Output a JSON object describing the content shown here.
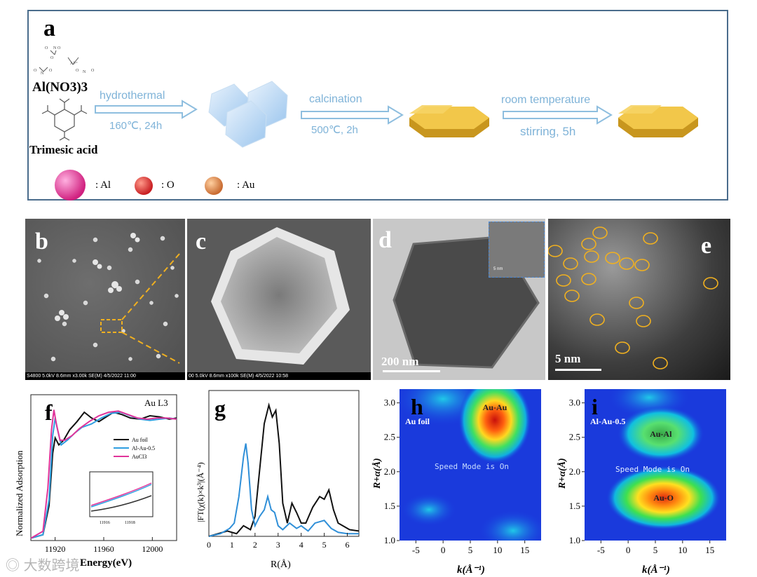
{
  "panel_a": {
    "letter": "a",
    "reagent1": "Al(NO3)3",
    "reagent2": "Trimesic acid",
    "step1_label": "hydrothermal",
    "step1_cond": "160℃,  24h",
    "step2_label": "calcination",
    "step2_cond": "500℃,  2h",
    "step3_label": "room temperature",
    "step3_cond": "stirring, 5h",
    "legend": [
      {
        "symbol": ": Al",
        "color": "#e0308f"
      },
      {
        "symbol": ": O",
        "color": "#d8262a"
      },
      {
        "symbol": ": Au",
        "color": "#d98040"
      }
    ]
  },
  "panel_b": {
    "letter": "b",
    "sem_info": "S4800 5.0kV 8.6mm x3.00k SE(M) 4/5/2022 11:00"
  },
  "panel_c": {
    "letter": "c",
    "sem_info": "00 5.0kV 8.6mm x100k SE(M) 4/5/2022 10:58"
  },
  "panel_d": {
    "letter": "d",
    "scale": "200 nm",
    "inset_scale": "5 nm"
  },
  "panel_e": {
    "letter": "e",
    "scale": "5 nm"
  },
  "chart_data": [
    {
      "id": "f",
      "type": "line",
      "title": "Au L3",
      "xlabel": "Energy(eV)",
      "ylabel": "Normalized Adsorption",
      "xlim": [
        11900,
        12020
      ],
      "ylim": [
        0,
        1.25
      ],
      "xticks": [
        11920,
        11960,
        12000
      ],
      "series": [
        {
          "name": "Au foil",
          "color": "#111111",
          "x": [
            11900,
            11910,
            11915,
            11918,
            11920,
            11923,
            11927,
            11932,
            11938,
            11944,
            11950,
            11956,
            11962,
            11968,
            11975,
            11982,
            11990,
            11998,
            12006,
            12014,
            12020
          ],
          "y": [
            0.02,
            0.05,
            0.3,
            0.75,
            0.88,
            0.82,
            0.86,
            0.95,
            1.02,
            1.1,
            1.05,
            1.02,
            1.06,
            1.1,
            1.08,
            1.05,
            1.04,
            1.07,
            1.06,
            1.04,
            1.05
          ]
        },
        {
          "name": "Al-Au-0.5",
          "color": "#2f9ee0",
          "x": [
            11900,
            11910,
            11915,
            11918,
            11920,
            11922,
            11925,
            11930,
            11936,
            11942,
            11950,
            11958,
            11966,
            11974,
            11982,
            11990,
            11998,
            12006,
            12014,
            12020
          ],
          "y": [
            0.02,
            0.05,
            0.35,
            0.9,
            1.05,
            0.95,
            0.82,
            0.86,
            0.92,
            0.97,
            1.0,
            1.05,
            1.09,
            1.1,
            1.07,
            1.04,
            1.03,
            1.04,
            1.05,
            1.04
          ]
        },
        {
          "name": "AuCl3",
          "color": "#e0349a",
          "x": [
            11900,
            11910,
            11914,
            11917,
            11919,
            11921,
            11924,
            11928,
            11934,
            11940,
            11948,
            11956,
            11964,
            11972,
            11980,
            11988,
            11996,
            12004,
            12012,
            12020
          ],
          "y": [
            0.02,
            0.08,
            0.45,
            0.95,
            1.12,
            1.0,
            0.86,
            0.86,
            0.9,
            0.96,
            1.02,
            1.07,
            1.1,
            1.11,
            1.08,
            1.05,
            1.04,
            1.05,
            1.05,
            1.04
          ]
        }
      ],
      "inset_xticks": [
        11916,
        11918
      ]
    },
    {
      "id": "g",
      "type": "line",
      "xlabel": "R(Å)",
      "ylabel": "|FT(χ(k)×k³|(Å⁻⁴)",
      "xlim": [
        0,
        6.5
      ],
      "ylim": [
        0,
        1.1
      ],
      "xticks": [
        0,
        1,
        2,
        3,
        4,
        5,
        6
      ],
      "series": [
        {
          "name": "Au foil",
          "color": "#111111",
          "x": [
            0.0,
            0.4,
            0.8,
            1.2,
            1.5,
            1.8,
            2.0,
            2.2,
            2.4,
            2.6,
            2.75,
            2.9,
            3.05,
            3.2,
            3.4,
            3.6,
            3.8,
            4.0,
            4.2,
            4.5,
            4.8,
            5.0,
            5.2,
            5.4,
            5.6,
            5.8,
            6.1,
            6.5
          ],
          "y": [
            0.0,
            0.02,
            0.04,
            0.02,
            0.08,
            0.05,
            0.15,
            0.5,
            0.85,
            0.99,
            0.9,
            0.95,
            0.7,
            0.25,
            0.1,
            0.25,
            0.18,
            0.1,
            0.1,
            0.22,
            0.3,
            0.28,
            0.35,
            0.2,
            0.1,
            0.08,
            0.05,
            0.04
          ]
        },
        {
          "name": "Al-Au-0.5",
          "color": "#2f8fd8",
          "x": [
            0.0,
            0.5,
            0.9,
            1.1,
            1.3,
            1.5,
            1.6,
            1.7,
            1.85,
            2.0,
            2.2,
            2.4,
            2.55,
            2.7,
            2.85,
            3.0,
            3.2,
            3.5,
            3.8,
            4.0,
            4.3,
            4.6,
            5.0,
            5.3,
            5.6,
            6.0,
            6.5
          ],
          "y": [
            0.0,
            0.02,
            0.06,
            0.1,
            0.3,
            0.6,
            0.7,
            0.55,
            0.2,
            0.08,
            0.15,
            0.2,
            0.3,
            0.2,
            0.18,
            0.08,
            0.05,
            0.1,
            0.06,
            0.08,
            0.04,
            0.1,
            0.12,
            0.06,
            0.03,
            0.02,
            0.02
          ]
        }
      ]
    },
    {
      "id": "h",
      "type": "heatmap",
      "label": "Au foil",
      "annotation": "Au-Au",
      "watermark": "Speed Mode is On",
      "xlabel": "k(Å⁻¹)",
      "ylabel": "R+α(Å)",
      "xlim": [
        -8,
        18
      ],
      "ylim": [
        1.0,
        3.2
      ],
      "xticks": [
        -5,
        0,
        5,
        10,
        15
      ],
      "yticks": [
        1.0,
        1.5,
        2.0,
        2.5,
        3.0
      ],
      "peak": {
        "k": 9.5,
        "R": 2.75
      }
    },
    {
      "id": "i",
      "type": "heatmap",
      "label": "Al-Au-0.5",
      "annotations": [
        {
          "text": "Au-Al",
          "k": 6,
          "R": 2.55
        },
        {
          "text": "Au-O",
          "k": 6.5,
          "R": 1.62
        }
      ],
      "watermark": "Speed Mode is On",
      "xlabel": "k(Å⁻¹)",
      "ylabel": "R+α(Å)",
      "xlim": [
        -8,
        18
      ],
      "ylim": [
        1.0,
        3.2
      ],
      "xticks": [
        -5,
        0,
        5,
        10,
        15
      ],
      "yticks": [
        1.0,
        1.5,
        2.0,
        2.5,
        3.0
      ]
    }
  ],
  "watermark_text": "大数跨境"
}
